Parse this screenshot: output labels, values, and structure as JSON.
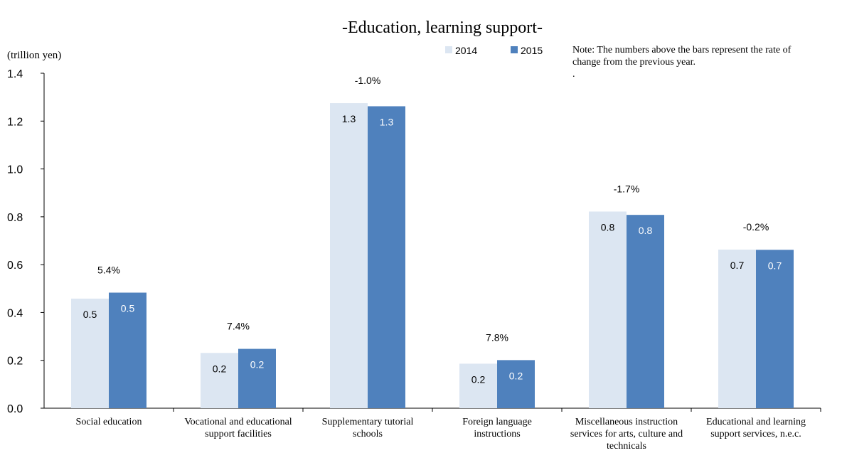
{
  "chart_data": {
    "type": "bar",
    "title": "-Education, learning support-",
    "ylabel": "(trillion yen)",
    "note": [
      "Note: The numbers above the bars represent the rate of",
      "change from the previous year.",
      "."
    ],
    "ylim": [
      0,
      1.4
    ],
    "yticks": [
      "0.0",
      "0.2",
      "0.4",
      "0.6",
      "0.8",
      "1.0",
      "1.2",
      "1.4"
    ],
    "legend_position": "top",
    "categories": [
      [
        "Social education"
      ],
      [
        "Vocational and educational",
        "support facilities"
      ],
      [
        "Supplementary tutorial",
        "schools"
      ],
      [
        "Foreign language",
        "instructions"
      ],
      [
        "Miscellaneous instruction",
        "services for arts, culture and",
        "technicals"
      ],
      [
        "Educational and learning",
        "support services, n.e.c."
      ]
    ],
    "series": [
      {
        "name": "2014",
        "color": "#dce6f2",
        "label_color": "#000000",
        "values": [
          0.458,
          0.231,
          1.275,
          0.186,
          0.822,
          0.663
        ],
        "labels": [
          "0.5",
          "0.2",
          "1.3",
          "0.2",
          "0.8",
          "0.7"
        ]
      },
      {
        "name": "2015",
        "color": "#4f81bd",
        "label_color": "#ffffff",
        "values": [
          0.483,
          0.248,
          1.262,
          0.201,
          0.808,
          0.662
        ],
        "labels": [
          "0.5",
          "0.2",
          "1.3",
          "0.2",
          "0.8",
          "0.7"
        ]
      }
    ],
    "rate_of_change": [
      "5.4%",
      "7.4%",
      "-1.0%",
      "7.8%",
      "-1.7%",
      "-0.2%"
    ]
  }
}
